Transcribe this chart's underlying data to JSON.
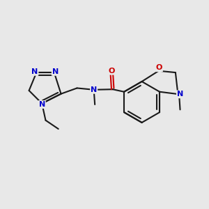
{
  "background_color": "#e8e8e8",
  "bond_color": "#1a1a1a",
  "N_color": "#0000cc",
  "O_color": "#cc0000",
  "bond_width": 1.5,
  "figsize": [
    3.0,
    3.0
  ],
  "dpi": 100,
  "xlim": [
    0,
    10
  ],
  "ylim": [
    0,
    10
  ]
}
